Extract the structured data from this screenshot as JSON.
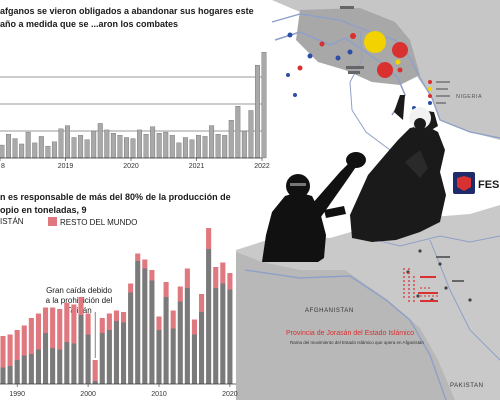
{
  "chart1": {
    "title": "afganos se vieron obligados a abandonar sus hogares este año a medida que se ...aron los combates",
    "ticks": [
      "8",
      "2019",
      "2020",
      "2021",
      "2022"
    ],
    "bar_color": "#a9a9a9"
  },
  "chart2": {
    "title": "n es responsable de más del 80% de la producción de opio en toneladas, 9",
    "legend": [
      {
        "label": "ISTÁN",
        "color": "#7a7a7a"
      },
      {
        "label": "RESTO DEL MUNDO",
        "color": "#e07880"
      }
    ],
    "annotation": "Gran caída debido a la prohibición del Talibán",
    "ticks": [
      "1990",
      "2000",
      "2010",
      "2020"
    ]
  },
  "chart_data": [
    {
      "type": "bar",
      "title": "",
      "xlabel": "",
      "ylabel": "",
      "x_range": [
        2018.0,
        2022.0
      ],
      "y_range": [
        0,
        100
      ],
      "x": [
        2018.0,
        2018.1,
        2018.2,
        2018.3,
        2018.4,
        2018.5,
        2018.6,
        2018.7,
        2018.8,
        2018.9,
        2019.0,
        2019.1,
        2019.2,
        2019.3,
        2019.4,
        2019.5,
        2019.6,
        2019.7,
        2019.8,
        2019.9,
        2020.0,
        2020.1,
        2020.2,
        2020.3,
        2020.4,
        2020.5,
        2020.6,
        2020.7,
        2020.8,
        2020.9,
        2021.0,
        2021.1,
        2021.2,
        2021.3,
        2021.4,
        2021.5,
        2021.6,
        2021.7,
        2021.8,
        2021.9,
        2022.0
      ],
      "values": [
        12,
        22,
        18,
        13,
        24,
        14,
        20,
        11,
        15,
        27,
        30,
        19,
        21,
        17,
        25,
        32,
        26,
        23,
        21,
        19,
        18,
        26,
        22,
        29,
        23,
        24,
        21,
        14,
        19,
        17,
        21,
        20,
        30,
        22,
        21,
        35,
        48,
        25,
        44,
        86,
        98
      ],
      "grid": true
    },
    {
      "type": "bar",
      "title": "",
      "xlabel": "",
      "ylabel": "",
      "x_range": [
        1988,
        2021
      ],
      "y_range": [
        0,
        10000
      ],
      "categories": [
        1988,
        1989,
        1990,
        1991,
        1992,
        1993,
        1994,
        1995,
        1996,
        1997,
        1998,
        1999,
        2000,
        2001,
        2002,
        2003,
        2004,
        2005,
        2006,
        2007,
        2008,
        2009,
        2010,
        2011,
        2012,
        2013,
        2014,
        2015,
        2016,
        2017,
        2018,
        2019,
        2020
      ],
      "series": [
        {
          "name": "ISTÁN",
          "values": [
            1100,
            1200,
            1600,
            1900,
            2000,
            2300,
            3400,
            2400,
            2300,
            2800,
            2700,
            4600,
            3300,
            200,
            3400,
            3600,
            4200,
            4100,
            6100,
            8200,
            7700,
            6900,
            3600,
            5800,
            3700,
            5500,
            6400,
            3300,
            4800,
            9000,
            6400,
            6700,
            6300
          ]
        },
        {
          "name": "RESTO DEL MUNDO",
          "values": [
            2100,
            2100,
            2000,
            2000,
            2400,
            2400,
            1700,
            2700,
            2700,
            2600,
            2600,
            1200,
            1400,
            1400,
            1000,
            1100,
            700,
            700,
            600,
            500,
            600,
            700,
            900,
            1000,
            1200,
            1000,
            1300,
            1000,
            1200,
            1500,
            1400,
            1400,
            1100
          ]
        }
      ],
      "stacked": true
    }
  ],
  "map": {
    "poster_label": "FES",
    "country_label": "AFGHANISTAN",
    "country_label_2": "PAKISTAN",
    "country_label_3": "NIGERIA",
    "province_title": "Provincia de Jorasán del Estado Islámico",
    "province_subtitle": "Rama del movimiento del Estado Islámico que opera en Afganistán",
    "colors": {
      "land": "#c9c9c9",
      "land_dark": "#b3b3b3",
      "border": "#8fa0c8",
      "red": "#d93030",
      "yellow": "#f2d200",
      "blue": "#2c4ea8"
    }
  }
}
